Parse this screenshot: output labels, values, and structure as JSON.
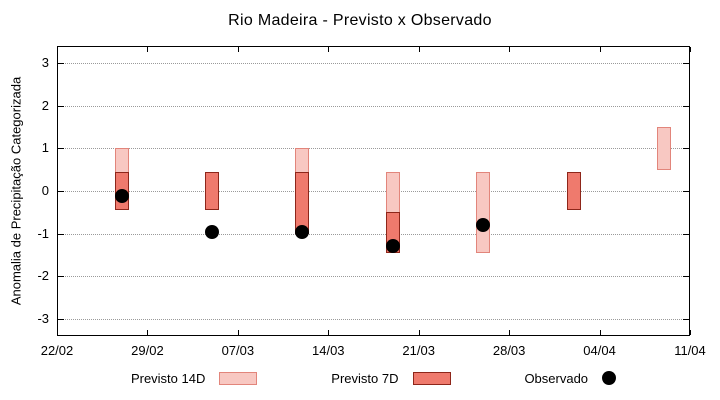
{
  "title": "Rio Madeira - Previsto x Observado",
  "ylabel": "Anomalia de Precipitação Categorizada",
  "legend": {
    "previsto14_label": "Previsto 14D",
    "previsto7_label": "Previsto 7D",
    "observado_label": "Observado"
  },
  "colors": {
    "previsto14_fill": "#f8c8c2",
    "previsto14_border": "#e2857b",
    "previsto7_fill": "#ef7a6d",
    "previsto7_border": "#8e261a",
    "observado_dot": "#000000",
    "grid": "#9a9a9a"
  },
  "chart_data": {
    "type": "bar",
    "subtype": "floating-range-candlesticks-with-points",
    "title": "Rio Madeira - Previsto x Observado",
    "xlabel": "",
    "ylabel": "Anomalia de Precipitação Categorizada",
    "ylim": [
      -3.4,
      3.4
    ],
    "y_ticks": [
      3,
      2,
      1,
      0,
      -1,
      -2,
      -3
    ],
    "x_ticks": [
      {
        "label": "22/02",
        "day": 0
      },
      {
        "label": "29/02",
        "day": 7
      },
      {
        "label": "07/03",
        "day": 14
      },
      {
        "label": "14/03",
        "day": 21
      },
      {
        "label": "21/03",
        "day": 28
      },
      {
        "label": "28/03",
        "day": 35
      },
      {
        "label": "04/04",
        "day": 42
      },
      {
        "label": "11/04",
        "day": 49
      }
    ],
    "x_range_days": 49,
    "grid": "horizontal-dotted",
    "legend_position": "bottom",
    "series": [
      {
        "name": "Previsto 14D",
        "type": "range",
        "points": [
          {
            "date": "27/02",
            "day": 5,
            "low": -0.45,
            "high": 1.0
          },
          {
            "date": "12/03",
            "day": 19,
            "low": -1.0,
            "high": 1.0
          },
          {
            "date": "19/03",
            "day": 26,
            "low": -1.45,
            "high": 0.45
          },
          {
            "date": "26/03",
            "day": 33,
            "low": -1.45,
            "high": 0.45
          },
          {
            "date": "09/04",
            "day": 47,
            "low": 0.5,
            "high": 1.5
          }
        ]
      },
      {
        "name": "Previsto 7D",
        "type": "range",
        "points": [
          {
            "date": "27/02",
            "day": 5,
            "low": -0.45,
            "high": 0.45
          },
          {
            "date": "05/03",
            "day": 12,
            "low": -0.45,
            "high": 0.45
          },
          {
            "date": "12/03",
            "day": 19,
            "low": -1.0,
            "high": 0.45
          },
          {
            "date": "19/03",
            "day": 26,
            "low": -1.45,
            "high": -0.5
          },
          {
            "date": "02/04",
            "day": 40,
            "low": -0.45,
            "high": 0.45
          }
        ]
      },
      {
        "name": "Observado",
        "type": "point",
        "points": [
          {
            "date": "27/02",
            "day": 5,
            "value": -0.12
          },
          {
            "date": "05/03",
            "day": 12,
            "value": -0.95
          },
          {
            "date": "12/03",
            "day": 19,
            "value": -0.95
          },
          {
            "date": "19/03",
            "day": 26,
            "value": -1.3
          },
          {
            "date": "26/03",
            "day": 33,
            "value": -0.8
          }
        ]
      }
    ]
  }
}
